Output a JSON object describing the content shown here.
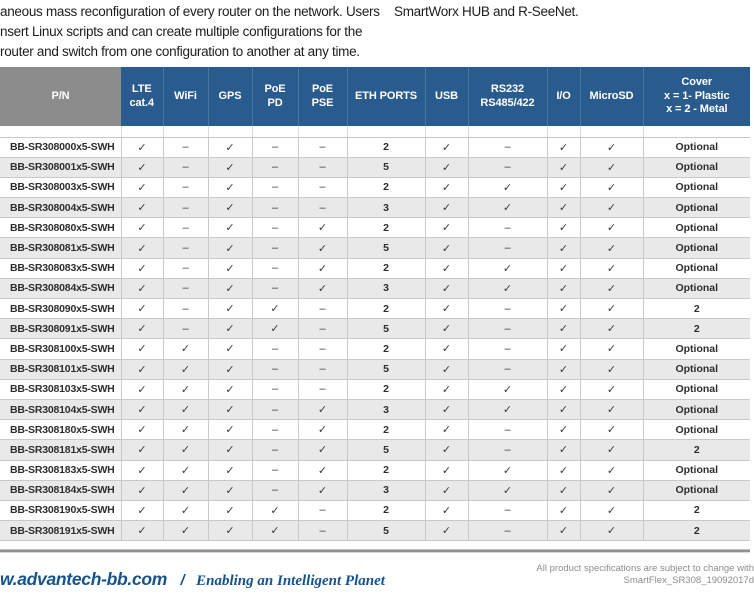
{
  "intro": {
    "left_lines": [
      "aneous mass reconfiguration of every router on the network. Users",
      "nsert Linux scripts and can create multiple configurations for the",
      "router and switch from one configuration to another at any time."
    ],
    "right_line": "SmartWorx HUB and R-SeeNet."
  },
  "table": {
    "columns": [
      {
        "key": "pn",
        "label": "P/N"
      },
      {
        "key": "lte",
        "label": "LTE\ncat.4"
      },
      {
        "key": "wifi",
        "label": "WiFi"
      },
      {
        "key": "gps",
        "label": "GPS"
      },
      {
        "key": "poe_pd",
        "label": "PoE\nPD"
      },
      {
        "key": "poe_pse",
        "label": "PoE\nPSE"
      },
      {
        "key": "eth",
        "label": "ETH PORTS"
      },
      {
        "key": "usb",
        "label": "USB"
      },
      {
        "key": "rs232",
        "label": "RS232\nRS485/422"
      },
      {
        "key": "io",
        "label": "I/O"
      },
      {
        "key": "microsd",
        "label": "MicroSD"
      },
      {
        "key": "cover",
        "label": "Cover\nx = 1- Plastic\nx = 2 - Metal"
      }
    ],
    "check_symbol": "✓",
    "dash_symbol": "–",
    "rows": [
      [
        "BB-SR308000x5-SWH",
        "✓",
        "–",
        "✓",
        "–",
        "–",
        "2",
        "✓",
        "–",
        "✓",
        "✓",
        "Optional"
      ],
      [
        "BB-SR308001x5-SWH",
        "✓",
        "–",
        "✓",
        "–",
        "–",
        "5",
        "✓",
        "–",
        "✓",
        "✓",
        "Optional"
      ],
      [
        "BB-SR308003x5-SWH",
        "✓",
        "–",
        "✓",
        "–",
        "–",
        "2",
        "✓",
        "✓",
        "✓",
        "✓",
        "Optional"
      ],
      [
        "BB-SR308004x5-SWH",
        "✓",
        "–",
        "✓",
        "–",
        "–",
        "3",
        "✓",
        "✓",
        "✓",
        "✓",
        "Optional"
      ],
      [
        "BB-SR308080x5-SWH",
        "✓",
        "–",
        "✓",
        "–",
        "✓",
        "2",
        "✓",
        "–",
        "✓",
        "✓",
        "Optional"
      ],
      [
        "BB-SR308081x5-SWH",
        "✓",
        "–",
        "✓",
        "–",
        "✓",
        "5",
        "✓",
        "–",
        "✓",
        "✓",
        "Optional"
      ],
      [
        "BB-SR308083x5-SWH",
        "✓",
        "–",
        "✓",
        "–",
        "✓",
        "2",
        "✓",
        "✓",
        "✓",
        "✓",
        "Optional"
      ],
      [
        "BB-SR308084x5-SWH",
        "✓",
        "–",
        "✓",
        "–",
        "✓",
        "3",
        "✓",
        "✓",
        "✓",
        "✓",
        "Optional"
      ],
      [
        "BB-SR308090x5-SWH",
        "✓",
        "–",
        "✓",
        "✓",
        "–",
        "2",
        "✓",
        "–",
        "✓",
        "✓",
        "2"
      ],
      [
        "BB-SR308091x5-SWH",
        "✓",
        "–",
        "✓",
        "✓",
        "–",
        "5",
        "✓",
        "–",
        "✓",
        "✓",
        "2"
      ],
      [
        "BB-SR308100x5-SWH",
        "✓",
        "✓",
        "✓",
        "–",
        "–",
        "2",
        "✓",
        "–",
        "✓",
        "✓",
        "Optional"
      ],
      [
        "BB-SR308101x5-SWH",
        "✓",
        "✓",
        "✓",
        "–",
        "–",
        "5",
        "✓",
        "–",
        "✓",
        "✓",
        "Optional"
      ],
      [
        "BB-SR308103x5-SWH",
        "✓",
        "✓",
        "✓",
        "–",
        "–",
        "2",
        "✓",
        "✓",
        "✓",
        "✓",
        "Optional"
      ],
      [
        "BB-SR308104x5-SWH",
        "✓",
        "✓",
        "✓",
        "–",
        "✓",
        "3",
        "✓",
        "✓",
        "✓",
        "✓",
        "Optional"
      ],
      [
        "BB-SR308180x5-SWH",
        "✓",
        "✓",
        "✓",
        "–",
        "✓",
        "2",
        "✓",
        "–",
        "✓",
        "✓",
        "Optional"
      ],
      [
        "BB-SR308181x5-SWH",
        "✓",
        "✓",
        "✓",
        "–",
        "✓",
        "5",
        "✓",
        "–",
        "✓",
        "✓",
        "2"
      ],
      [
        "BB-SR308183x5-SWH",
        "✓",
        "✓",
        "✓",
        "–",
        "✓",
        "2",
        "✓",
        "✓",
        "✓",
        "✓",
        "Optional"
      ],
      [
        "BB-SR308184x5-SWH",
        "✓",
        "✓",
        "✓",
        "–",
        "✓",
        "3",
        "✓",
        "✓",
        "✓",
        "✓",
        "Optional"
      ],
      [
        "BB-SR308190x5-SWH",
        "✓",
        "✓",
        "✓",
        "✓",
        "–",
        "2",
        "✓",
        "–",
        "✓",
        "✓",
        "2"
      ],
      [
        "BB-SR308191x5-SWH",
        "✓",
        "✓",
        "✓",
        "✓",
        "–",
        "5",
        "✓",
        "–",
        "✓",
        "✓",
        "2"
      ]
    ]
  },
  "footer": {
    "site": "w.advantech-bb.com",
    "separator": "/",
    "slogan": "Enabling an Intelligent Planet",
    "note_line1": "All product specifications are subject to change with",
    "note_line2": "SmartFlex_SR308_19092017d"
  },
  "colors": {
    "header_blue": "#2a5b8e",
    "header_gray": "#8c8c8c",
    "row_alt": "#e9e9e9",
    "border": "#c9c9c9",
    "footer_blue": "#15538c",
    "footer_gray": "#8d8d8d"
  }
}
